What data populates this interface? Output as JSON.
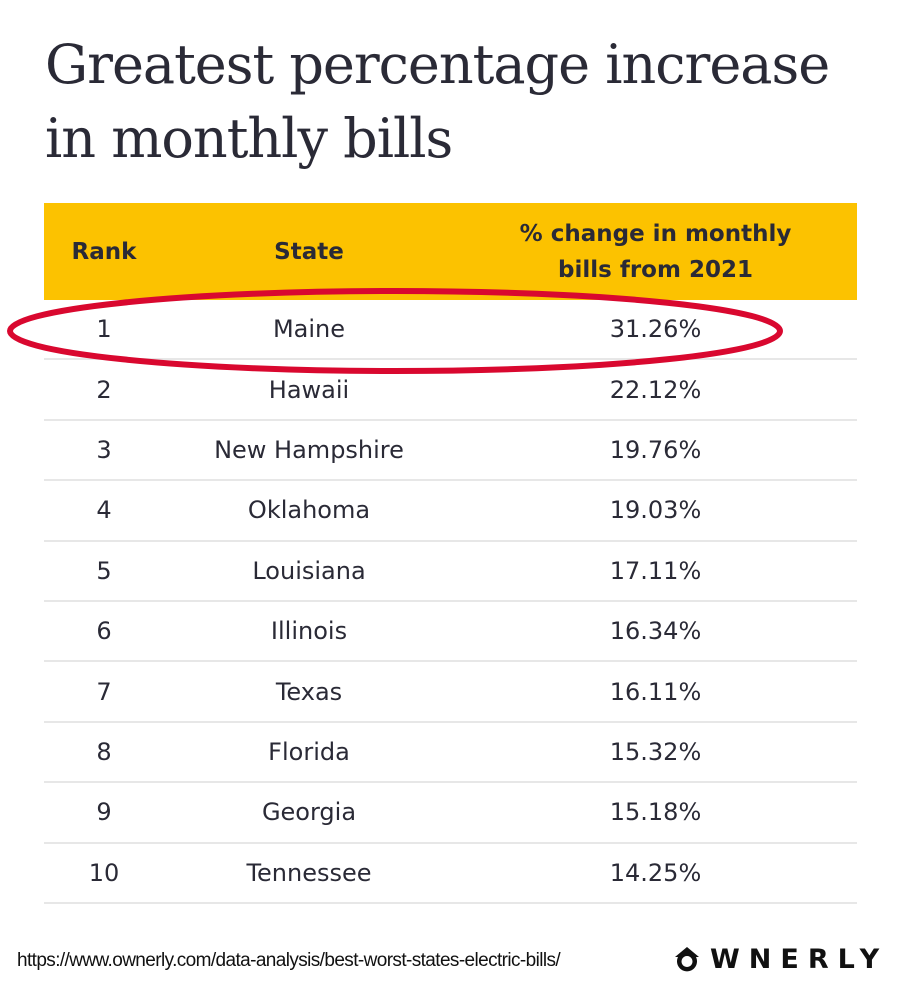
{
  "title": "Greatest percentage increase in monthly bills",
  "chart_data": {
    "type": "table",
    "title": "Greatest percentage increase in monthly bills",
    "columns": [
      "Rank",
      "State",
      "% change in monthly bills from 2021"
    ],
    "rows": [
      {
        "rank": "1",
        "state": "Maine",
        "pct": "31.26%"
      },
      {
        "rank": "2",
        "state": "Hawaii",
        "pct": "22.12%"
      },
      {
        "rank": "3",
        "state": "New Hampshire",
        "pct": "19.76%"
      },
      {
        "rank": "4",
        "state": "Oklahoma",
        "pct": "19.03%"
      },
      {
        "rank": "5",
        "state": "Louisiana",
        "pct": "17.11%"
      },
      {
        "rank": "6",
        "state": "Illinois",
        "pct": "16.34%"
      },
      {
        "rank": "7",
        "state": "Texas",
        "pct": "16.11%"
      },
      {
        "rank": "8",
        "state": "Florida",
        "pct": "15.32%"
      },
      {
        "rank": "9",
        "state": "Georgia",
        "pct": "15.18%"
      },
      {
        "rank": "10",
        "state": "Tennessee",
        "pct": "14.25%"
      }
    ],
    "highlighted_row": "Maine"
  },
  "header": {
    "rank": "Rank",
    "state": "State",
    "pct_line1": "% change in monthly",
    "pct_line2": "bills from 2021"
  },
  "colors": {
    "header_bg": "#fcc200",
    "highlight_ellipse": "#d9082f",
    "text": "#2a2a36"
  },
  "footer": {
    "url": "https://www.ownerly.com/data-analysis/best-worst-states-electric-bills/",
    "logo_text": "WNERLY",
    "logo_icon": "house-o-icon"
  }
}
